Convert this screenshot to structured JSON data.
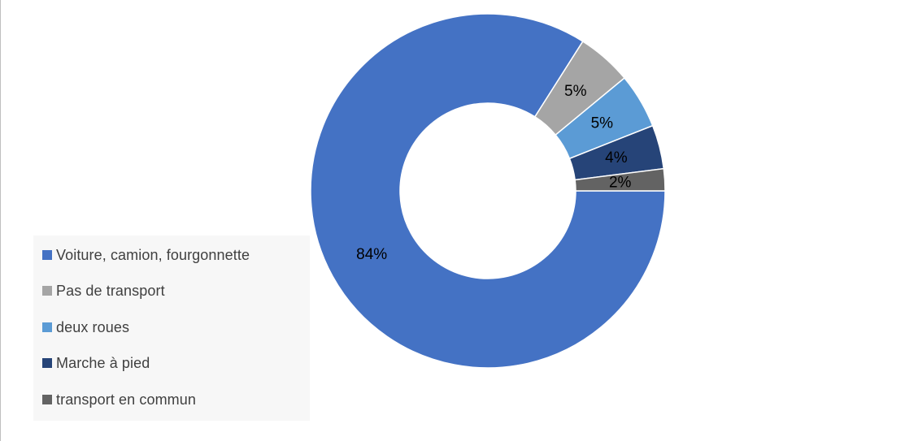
{
  "chart_data": {
    "type": "pie",
    "variant": "donut",
    "categories": [
      "Voiture, camion, fourgonnette",
      "Pas de transport",
      "deux roues",
      "Marche à pied",
      "transport en commun"
    ],
    "values": [
      84,
      5,
      5,
      4,
      2
    ],
    "data_labels": [
      "84%",
      "5%",
      "5%",
      "4%",
      "2%"
    ],
    "colors": [
      "#4472c4",
      "#a5a5a5",
      "#5b9bd5",
      "#264478",
      "#636363"
    ],
    "legend_position": "left",
    "title": ""
  }
}
